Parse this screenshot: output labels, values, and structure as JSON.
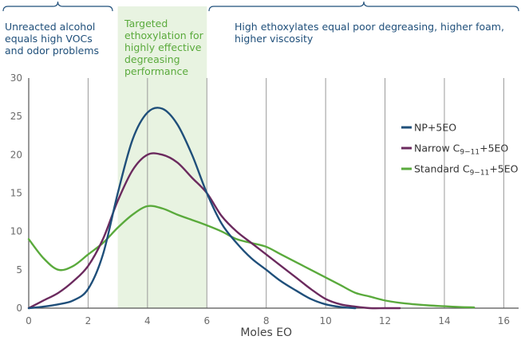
{
  "chart_data": {
    "type": "line",
    "xlabel": "Moles EO",
    "ylabel": "",
    "xlim": [
      0,
      16.5
    ],
    "ylim": [
      0,
      30
    ],
    "x_ticks": [
      "0",
      "2",
      "4",
      "6",
      "8",
      "10",
      "12",
      "14",
      "16"
    ],
    "y_ticks": [
      "0",
      "5",
      "10",
      "15",
      "20",
      "25",
      "30"
    ],
    "grid": "vertical",
    "legend_position": "right",
    "highlight_band": [
      3,
      6
    ],
    "series": [
      {
        "name": "NP+5EO",
        "color": "#1f4f7a",
        "x": [
          0,
          0.5,
          1,
          1.5,
          2,
          2.5,
          3,
          3.5,
          4,
          4.5,
          5,
          5.5,
          6,
          6.5,
          7,
          7.5,
          8,
          8.5,
          9,
          9.5,
          10,
          10.5,
          11
        ],
        "y": [
          0,
          0.2,
          0.5,
          1,
          2.5,
          7,
          15,
          22,
          25.5,
          26,
          24,
          20,
          15,
          11,
          8.5,
          6.5,
          5,
          3.5,
          2.3,
          1.2,
          0.5,
          0.15,
          0
        ]
      },
      {
        "name_parts": {
          "base": "Narrow C",
          "sub": "9−11",
          "suffix": "+5EO"
        },
        "color": "#6b2a5e",
        "x": [
          0,
          0.5,
          1,
          1.5,
          2,
          2.5,
          3,
          3.5,
          4,
          4.5,
          5,
          5.5,
          6,
          6.5,
          7,
          7.5,
          8,
          8.5,
          9,
          9.5,
          10,
          10.5,
          11,
          11.5,
          12,
          12.5
        ],
        "y": [
          0,
          1,
          2,
          3.5,
          5.5,
          9,
          14,
          18,
          20,
          20,
          19,
          17,
          15,
          12,
          10,
          8.5,
          7,
          5.5,
          4,
          2.5,
          1.2,
          0.5,
          0.2,
          0,
          0,
          0
        ]
      },
      {
        "name_parts": {
          "base": "Standard C",
          "sub": "9−11",
          "suffix": "+5EO"
        },
        "color": "#5aaa3c",
        "x": [
          0,
          0.5,
          1,
          1.5,
          2,
          2.5,
          3,
          3.5,
          4,
          4.5,
          5,
          5.5,
          6,
          6.5,
          7,
          7.5,
          8,
          8.5,
          9,
          9.5,
          10,
          10.5,
          11,
          11.5,
          12,
          12.5,
          13,
          13.5,
          14,
          14.5,
          15
        ],
        "y": [
          9,
          6.5,
          5,
          5.5,
          7,
          8.5,
          10.5,
          12.2,
          13.3,
          13,
          12.2,
          11.5,
          10.8,
          10,
          9,
          8.5,
          8,
          7,
          6,
          5,
          4,
          3,
          2,
          1.5,
          1,
          0.7,
          0.5,
          0.35,
          0.25,
          0.15,
          0.1
        ]
      }
    ]
  },
  "annotations": {
    "left_text": "Unreacted alcohol\nequals high VOCs\nand odor problems",
    "middle_text": "Targeted\nethoxylation for\nhighly effective\ndegreasing\nperformance",
    "right_text": "High ethoxylates equal poor degreasing, higher foam,\nhigher viscosity",
    "blue": "#1f4f7a",
    "green": "#5aaa3c",
    "band_color": "#e8f3e1"
  }
}
